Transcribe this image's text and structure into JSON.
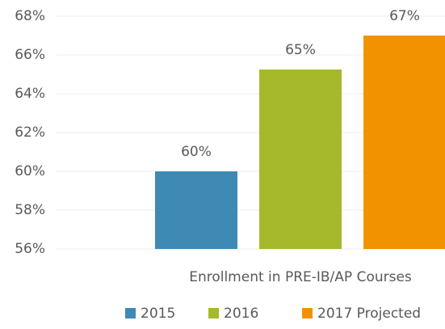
{
  "chart_data": {
    "type": "bar",
    "categories": [
      "Enrollment in PRE-IB/AP Courses"
    ],
    "series": [
      {
        "name": "2015",
        "color": "#3e8ab5",
        "values": [
          60
        ],
        "value_labels": [
          "60%"
        ]
      },
      {
        "name": "2016",
        "color": "#a5b92a",
        "values": [
          65.25
        ],
        "value_labels": [
          "65%"
        ]
      },
      {
        "name": "2017 Projected",
        "color": "#f39200",
        "values": [
          67
        ],
        "value_labels": [
          "67%"
        ]
      }
    ],
    "ylim": [
      56,
      68
    ],
    "yticks": [
      {
        "value": 56,
        "label": "56%"
      },
      {
        "value": 58,
        "label": "58%"
      },
      {
        "value": 60,
        "label": "60%"
      },
      {
        "value": 62,
        "label": "62%"
      },
      {
        "value": 64,
        "label": "64%"
      },
      {
        "value": 66,
        "label": "66%"
      },
      {
        "value": 68,
        "label": "68%"
      }
    ],
    "grid": true,
    "legend": "bottom"
  }
}
